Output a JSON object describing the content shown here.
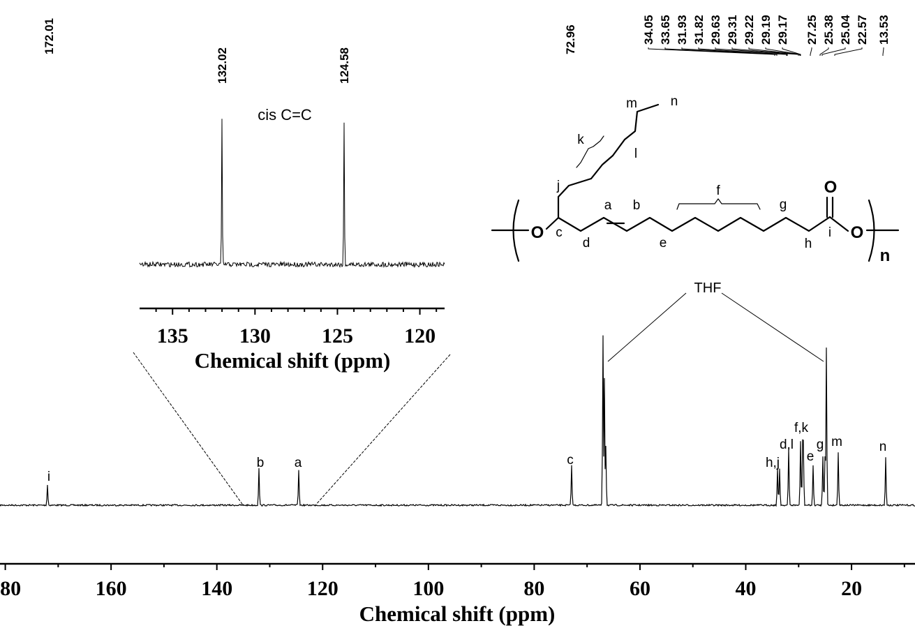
{
  "chart_data": {
    "type": "line",
    "title": "",
    "xlabel": "Chemical shift (ppm)",
    "xlim": [
      181,
      8
    ],
    "x_ticks": [
      "180",
      "160",
      "140",
      "120",
      "100",
      "80",
      "60",
      "40",
      "20"
    ],
    "grid": false,
    "peaks": [
      {
        "x": 172.01,
        "h": 0.24,
        "label": "i"
      },
      {
        "x": 132.02,
        "h": 0.43,
        "label": "b"
      },
      {
        "x": 124.58,
        "h": 0.42,
        "label": "a"
      },
      {
        "x": 72.96,
        "h": 0.47,
        "label": "c"
      },
      {
        "x": 67.0,
        "h": 2.0,
        "label": "THF"
      },
      {
        "x": 66.7,
        "h": 1.5,
        "label": ""
      },
      {
        "x": 66.4,
        "h": 0.7,
        "label": ""
      },
      {
        "x": 34.05,
        "h": 0.43,
        "label": ""
      },
      {
        "x": 33.65,
        "h": 0.43,
        "label": "h,j"
      },
      {
        "x": 31.93,
        "h": 0.66,
        "label": ""
      },
      {
        "x": 31.82,
        "h": 0.66,
        "label": "d,l"
      },
      {
        "x": 29.63,
        "h": 0.75,
        "label": ""
      },
      {
        "x": 29.31,
        "h": 0.73,
        "label": ""
      },
      {
        "x": 29.22,
        "h": 0.75,
        "label": ""
      },
      {
        "x": 29.19,
        "h": 0.76,
        "label": ""
      },
      {
        "x": 29.17,
        "h": 0.77,
        "label": "f,k"
      },
      {
        "x": 27.25,
        "h": 0.46,
        "label": "e"
      },
      {
        "x": 25.38,
        "h": 0.58,
        "label": ""
      },
      {
        "x": 25.04,
        "h": 0.58,
        "label": "g"
      },
      {
        "x": 24.7,
        "h": 1.85,
        "label": "THF"
      },
      {
        "x": 22.57,
        "h": 0.63,
        "label": "m"
      },
      {
        "x": 13.53,
        "h": 0.56,
        "label": "n"
      }
    ],
    "shift_labels": [
      "172.01",
      "132.02",
      "124.58",
      "72.96",
      "34.05",
      "33.65",
      "31.93",
      "31.82",
      "29.63",
      "29.31",
      "29.22",
      "29.19",
      "29.17",
      "27.25",
      "25.38",
      "25.04",
      "22.57",
      "13.53"
    ],
    "thf_label": "THF",
    "inset": {
      "title": "cis C=C",
      "xlabel": "Chemical shift (ppm)",
      "xlim": [
        137,
        118.5
      ],
      "x_ticks": [
        "135",
        "130",
        "125",
        "120"
      ],
      "peaks": [
        {
          "x": 132.02,
          "h": 1.0
        },
        {
          "x": 124.58,
          "h": 0.98
        }
      ]
    }
  },
  "structure": {
    "end_group_label": "n",
    "atom_labels": [
      "O",
      "O",
      "O"
    ],
    "position_labels": [
      "a",
      "b",
      "c",
      "d",
      "e",
      "f",
      "g",
      "h",
      "i",
      "j",
      "k",
      "l",
      "m",
      "n"
    ]
  }
}
